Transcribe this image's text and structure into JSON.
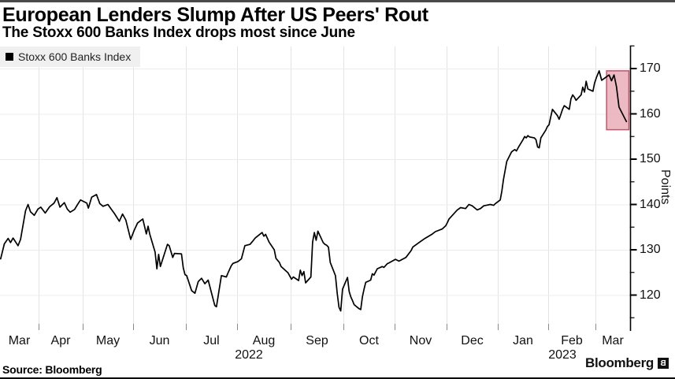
{
  "header": {},
  "footer": {
    "source": "Source: Bloomberg",
    "logo_text": "Bloomberg",
    "logo_icon": "B"
  },
  "colors": {
    "line": "#000000",
    "grid_vertical": "#e3e3e3",
    "grid_horizontal": "#ececec",
    "axis": "#000000",
    "bottom_tick": "#8a8a8a",
    "highlight_fill": "#e9a9b4",
    "highlight_stroke": "#c0556b",
    "legend_bg": "#f0f0f0"
  },
  "chart_data": {
    "type": "line",
    "title": "European Lenders Slump After US Peers' Rout",
    "subtitle": "The Stoxx 600 Banks Index drops most since June",
    "ylabel": "Points",
    "ylim": [
      112,
      175
    ],
    "y_ticks": [
      120,
      130,
      140,
      150,
      160,
      170
    ],
    "y_minor_ticks": [
      115,
      125,
      135,
      145,
      155,
      165,
      175
    ],
    "grid": true,
    "legend_position": "top-left",
    "x_months": [
      {
        "label": "Mar",
        "ym": "2022-03"
      },
      {
        "label": "Apr",
        "ym": "2022-04"
      },
      {
        "label": "May",
        "ym": "2022-05"
      },
      {
        "label": "Jun",
        "ym": "2022-06"
      },
      {
        "label": "Jul",
        "ym": "2022-07"
      },
      {
        "label": "Aug",
        "ym": "2022-08"
      },
      {
        "label": "Sep",
        "ym": "2022-09"
      },
      {
        "label": "Oct",
        "ym": "2022-10"
      },
      {
        "label": "Nov",
        "ym": "2022-11"
      },
      {
        "label": "Dec",
        "ym": "2022-12"
      },
      {
        "label": "Jan",
        "ym": "2023-01"
      },
      {
        "label": "Feb",
        "ym": "2023-02"
      },
      {
        "label": "Mar",
        "ym": "2023-03"
      }
    ],
    "years": [
      "2022",
      "2023"
    ],
    "highlight": {
      "from": "2023-03-05",
      "to": "2023-03-14",
      "top": 169.5,
      "bottom": 156.5
    },
    "series": [
      {
        "name": "Stoxx 600 Banks Index",
        "color": "#000000",
        "points": [
          [
            "2022-03-01",
            128.0
          ],
          [
            "2022-03-04",
            131.3
          ],
          [
            "2022-03-07",
            132.5
          ],
          [
            "2022-03-09",
            131.6
          ],
          [
            "2022-03-11",
            132.6
          ],
          [
            "2022-03-15",
            130.9
          ],
          [
            "2022-03-17",
            132.3
          ],
          [
            "2022-03-21",
            138.6
          ],
          [
            "2022-03-23",
            140.0
          ],
          [
            "2022-03-25",
            138.4
          ],
          [
            "2022-03-28",
            137.6
          ],
          [
            "2022-03-31",
            139.0
          ],
          [
            "2022-04-02",
            139.4
          ],
          [
            "2022-04-05",
            138.1
          ],
          [
            "2022-04-08",
            139.5
          ],
          [
            "2022-04-11",
            140.3
          ],
          [
            "2022-04-13",
            141.5
          ],
          [
            "2022-04-15",
            139.4
          ],
          [
            "2022-04-18",
            140.4
          ],
          [
            "2022-04-20",
            139.0
          ],
          [
            "2022-04-22",
            138.3
          ],
          [
            "2022-04-25",
            138.9
          ],
          [
            "2022-04-27",
            140.0
          ],
          [
            "2022-04-29",
            141.0
          ],
          [
            "2022-05-03",
            140.3
          ],
          [
            "2022-05-04",
            139.2
          ],
          [
            "2022-05-06",
            141.6
          ],
          [
            "2022-05-09",
            142.2
          ],
          [
            "2022-05-11",
            140.2
          ],
          [
            "2022-05-13",
            139.6
          ],
          [
            "2022-05-16",
            140.0
          ],
          [
            "2022-05-18",
            139.0
          ],
          [
            "2022-05-20",
            138.0
          ],
          [
            "2022-05-23",
            136.3
          ],
          [
            "2022-05-25",
            137.9
          ],
          [
            "2022-05-27",
            136.6
          ],
          [
            "2022-05-30",
            132.3
          ],
          [
            "2022-06-01",
            134.2
          ],
          [
            "2022-06-03",
            135.9
          ],
          [
            "2022-06-06",
            136.8
          ],
          [
            "2022-06-08",
            133.5
          ],
          [
            "2022-06-09",
            135.2
          ],
          [
            "2022-06-10",
            133.4
          ],
          [
            "2022-06-13",
            129.5
          ],
          [
            "2022-06-14",
            125.8
          ],
          [
            "2022-06-15",
            129.0
          ],
          [
            "2022-06-16",
            126.3
          ],
          [
            "2022-06-20",
            131.2
          ],
          [
            "2022-06-21",
            130.9
          ],
          [
            "2022-06-23",
            128.3
          ],
          [
            "2022-06-24",
            129.2
          ],
          [
            "2022-06-28",
            129.1
          ],
          [
            "2022-06-29",
            126.0
          ],
          [
            "2022-06-30",
            124.5
          ],
          [
            "2022-07-01",
            124.3
          ],
          [
            "2022-07-04",
            121.0
          ],
          [
            "2022-07-06",
            120.4
          ],
          [
            "2022-07-08",
            123.0
          ],
          [
            "2022-07-10",
            123.7
          ],
          [
            "2022-07-12",
            122.5
          ],
          [
            "2022-07-14",
            123.3
          ],
          [
            "2022-07-18",
            117.7
          ],
          [
            "2022-07-19",
            117.4
          ],
          [
            "2022-07-22",
            124.3
          ],
          [
            "2022-07-25",
            124.0
          ],
          [
            "2022-07-26",
            124.9
          ],
          [
            "2022-07-28",
            126.5
          ],
          [
            "2022-07-29",
            127.0
          ],
          [
            "2022-08-01",
            127.4
          ],
          [
            "2022-08-03",
            128.0
          ],
          [
            "2022-08-05",
            130.9
          ],
          [
            "2022-08-08",
            131.2
          ],
          [
            "2022-08-10",
            132.1
          ],
          [
            "2022-08-11",
            132.6
          ],
          [
            "2022-08-12",
            132.9
          ],
          [
            "2022-08-15",
            133.8
          ],
          [
            "2022-08-16",
            133.0
          ],
          [
            "2022-08-17",
            133.4
          ],
          [
            "2022-08-19",
            131.7
          ],
          [
            "2022-08-22",
            130.0
          ],
          [
            "2022-08-23",
            128.1
          ],
          [
            "2022-08-25",
            127.2
          ],
          [
            "2022-08-26",
            126.3
          ],
          [
            "2022-08-30",
            124.9
          ],
          [
            "2022-08-31",
            124.2
          ],
          [
            "2022-09-01",
            123.5
          ],
          [
            "2022-09-02",
            124.0
          ],
          [
            "2022-09-05",
            123.2
          ],
          [
            "2022-09-06",
            125.5
          ],
          [
            "2022-09-07",
            124.3
          ],
          [
            "2022-09-08",
            125.2
          ],
          [
            "2022-09-09",
            122.7
          ],
          [
            "2022-09-12",
            124.0
          ],
          [
            "2022-09-13",
            131.7
          ],
          [
            "2022-09-14",
            133.8
          ],
          [
            "2022-09-15",
            132.1
          ],
          [
            "2022-09-16",
            134.1
          ],
          [
            "2022-09-19",
            131.6
          ],
          [
            "2022-09-20",
            131.2
          ],
          [
            "2022-09-21",
            131.0
          ],
          [
            "2022-09-22",
            130.6
          ],
          [
            "2022-09-23",
            127.2
          ],
          [
            "2022-09-26",
            124.3
          ],
          [
            "2022-09-27",
            120.3
          ],
          [
            "2022-09-28",
            117.3
          ],
          [
            "2022-09-29",
            116.5
          ],
          [
            "2022-09-30",
            121.3
          ],
          [
            "2022-10-03",
            123.9
          ],
          [
            "2022-10-04",
            120.8
          ],
          [
            "2022-10-05",
            119.6
          ],
          [
            "2022-10-06",
            118.8
          ],
          [
            "2022-10-07",
            117.9
          ],
          [
            "2022-10-10",
            117.0
          ],
          [
            "2022-10-11",
            116.8
          ],
          [
            "2022-10-12",
            119.6
          ],
          [
            "2022-10-13",
            121.3
          ],
          [
            "2022-10-14",
            122.8
          ],
          [
            "2022-10-17",
            123.3
          ],
          [
            "2022-10-18",
            124.7
          ],
          [
            "2022-10-19",
            124.4
          ],
          [
            "2022-10-21",
            125.8
          ],
          [
            "2022-10-24",
            126.3
          ],
          [
            "2022-10-25",
            126.1
          ],
          [
            "2022-10-27",
            126.9
          ],
          [
            "2022-10-28",
            127.1
          ],
          [
            "2022-10-31",
            127.7
          ],
          [
            "2022-11-01",
            127.9
          ],
          [
            "2022-11-03",
            127.5
          ],
          [
            "2022-11-07",
            128.3
          ],
          [
            "2022-11-10",
            129.8
          ],
          [
            "2022-11-11",
            130.6
          ],
          [
            "2022-11-15",
            131.7
          ],
          [
            "2022-11-18",
            132.5
          ],
          [
            "2022-11-22",
            133.4
          ],
          [
            "2022-11-24",
            134.0
          ],
          [
            "2022-11-28",
            134.6
          ],
          [
            "2022-11-30",
            135.3
          ],
          [
            "2022-12-01",
            136.0
          ],
          [
            "2022-12-02",
            136.8
          ],
          [
            "2022-12-07",
            138.8
          ],
          [
            "2022-12-09",
            139.3
          ],
          [
            "2022-12-12",
            139.1
          ],
          [
            "2022-12-14",
            140.0
          ],
          [
            "2022-12-16",
            139.7
          ],
          [
            "2022-12-19",
            138.8
          ],
          [
            "2022-12-21",
            139.1
          ],
          [
            "2022-12-23",
            139.7
          ],
          [
            "2022-12-27",
            140.0
          ],
          [
            "2022-12-29",
            139.8
          ],
          [
            "2022-12-30",
            140.2
          ],
          [
            "2023-01-02",
            141.0
          ],
          [
            "2023-01-03",
            143.0
          ],
          [
            "2023-01-04",
            145.5
          ],
          [
            "2023-01-05",
            147.5
          ],
          [
            "2023-01-06",
            149.5
          ],
          [
            "2023-01-09",
            151.6
          ],
          [
            "2023-01-10",
            151.9
          ],
          [
            "2023-01-11",
            152.1
          ],
          [
            "2023-01-12",
            151.8
          ],
          [
            "2023-01-13",
            152.5
          ],
          [
            "2023-01-16",
            154.3
          ],
          [
            "2023-01-17",
            155.0
          ],
          [
            "2023-01-18",
            154.7
          ],
          [
            "2023-01-19",
            155.2
          ],
          [
            "2023-01-20",
            154.9
          ],
          [
            "2023-01-23",
            154.7
          ],
          [
            "2023-01-24",
            154.3
          ],
          [
            "2023-01-25",
            152.7
          ],
          [
            "2023-01-26",
            152.5
          ],
          [
            "2023-01-27",
            154.7
          ],
          [
            "2023-01-30",
            156.4
          ],
          [
            "2023-01-31",
            157.2
          ],
          [
            "2023-02-01",
            157.6
          ],
          [
            "2023-02-02",
            159.3
          ],
          [
            "2023-02-03",
            161.0
          ],
          [
            "2023-02-06",
            159.6
          ],
          [
            "2023-02-07",
            158.8
          ],
          [
            "2023-02-08",
            159.9
          ],
          [
            "2023-02-09",
            161.0
          ],
          [
            "2023-02-10",
            161.8
          ],
          [
            "2023-02-13",
            161.0
          ],
          [
            "2023-02-14",
            163.3
          ],
          [
            "2023-02-15",
            164.2
          ],
          [
            "2023-02-16",
            163.7
          ],
          [
            "2023-02-17",
            163.0
          ],
          [
            "2023-02-20",
            164.2
          ],
          [
            "2023-02-21",
            165.9
          ],
          [
            "2023-02-22",
            164.8
          ],
          [
            "2023-02-23",
            167.2
          ],
          [
            "2023-02-24",
            165.5
          ],
          [
            "2023-02-27",
            165.0
          ],
          [
            "2023-02-28",
            166.8
          ],
          [
            "2023-03-01",
            168.2
          ],
          [
            "2023-03-02",
            169.5
          ],
          [
            "2023-03-03",
            167.4
          ],
          [
            "2023-03-06",
            168.6
          ],
          [
            "2023-03-07",
            167.3
          ],
          [
            "2023-03-08",
            168.6
          ],
          [
            "2023-03-09",
            166.0
          ],
          [
            "2023-03-10",
            161.5
          ],
          [
            "2023-03-13",
            158.3
          ]
        ]
      }
    ]
  }
}
